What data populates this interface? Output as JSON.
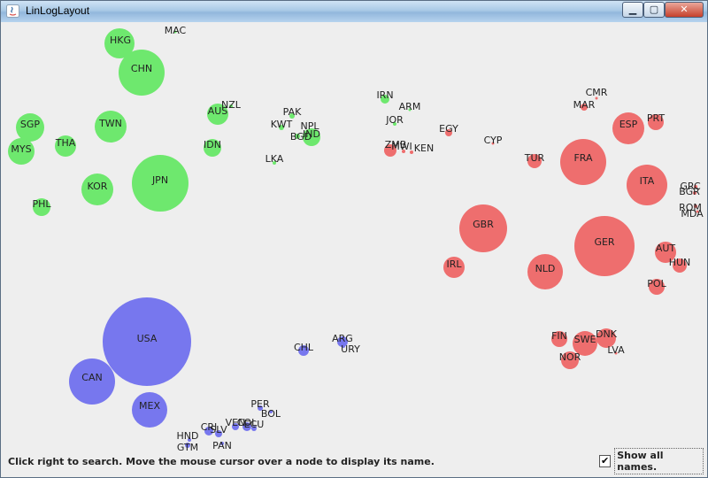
{
  "window": {
    "title": "LinLogLayout"
  },
  "window_buttons": {
    "minimize": "▁",
    "maximize": "▢",
    "close": "✕"
  },
  "colors": {
    "asia": "#6ee86e",
    "europe": "#ee6e6e",
    "americas": "#7777ee"
  },
  "nodes": [
    {
      "name": "HKG",
      "group": "asia"
    },
    {
      "name": "MAC",
      "group": "asia"
    },
    {
      "name": "CHN",
      "group": "asia"
    },
    {
      "name": "SGP",
      "group": "asia"
    },
    {
      "name": "TWN",
      "group": "asia"
    },
    {
      "name": "MYS",
      "group": "asia"
    },
    {
      "name": "THA",
      "group": "asia"
    },
    {
      "name": "AUS",
      "group": "asia"
    },
    {
      "name": "NZL",
      "group": "asia"
    },
    {
      "name": "IDN",
      "group": "asia"
    },
    {
      "name": "PAK",
      "group": "asia"
    },
    {
      "name": "KWT",
      "group": "asia"
    },
    {
      "name": "NPL",
      "group": "asia"
    },
    {
      "name": "BGD",
      "group": "asia"
    },
    {
      "name": "IND",
      "group": "asia"
    },
    {
      "name": "LKA",
      "group": "asia"
    },
    {
      "name": "JPN",
      "group": "asia"
    },
    {
      "name": "KOR",
      "group": "asia"
    },
    {
      "name": "PHL",
      "group": "asia"
    },
    {
      "name": "IRN",
      "group": "asia"
    },
    {
      "name": "ARM",
      "group": "asia"
    },
    {
      "name": "JOR",
      "group": "asia"
    },
    {
      "name": "CMR",
      "group": "europe"
    },
    {
      "name": "MAR",
      "group": "europe"
    },
    {
      "name": "ESP",
      "group": "europe"
    },
    {
      "name": "PRT",
      "group": "europe"
    },
    {
      "name": "EGY",
      "group": "europe"
    },
    {
      "name": "CYP",
      "group": "europe"
    },
    {
      "name": "ZMB",
      "group": "europe"
    },
    {
      "name": "MWI",
      "group": "europe"
    },
    {
      "name": "KEN",
      "group": "europe"
    },
    {
      "name": "TUR",
      "group": "europe"
    },
    {
      "name": "FRA",
      "group": "europe"
    },
    {
      "name": "ITA",
      "group": "europe"
    },
    {
      "name": "GRC",
      "group": "europe"
    },
    {
      "name": "BGR",
      "group": "europe"
    },
    {
      "name": "ROM",
      "group": "europe"
    },
    {
      "name": "MDA",
      "group": "europe"
    },
    {
      "name": "GBR",
      "group": "europe"
    },
    {
      "name": "GER",
      "group": "europe"
    },
    {
      "name": "IRL",
      "group": "europe"
    },
    {
      "name": "AUT",
      "group": "europe"
    },
    {
      "name": "HUN",
      "group": "europe"
    },
    {
      "name": "NLD",
      "group": "europe"
    },
    {
      "name": "POL",
      "group": "europe"
    },
    {
      "name": "FIN",
      "group": "europe"
    },
    {
      "name": "SWE",
      "group": "europe"
    },
    {
      "name": "DNK",
      "group": "europe"
    },
    {
      "name": "NOR",
      "group": "europe"
    },
    {
      "name": "LVA",
      "group": "europe"
    },
    {
      "name": "USA",
      "group": "americas"
    },
    {
      "name": "CAN",
      "group": "americas"
    },
    {
      "name": "MEX",
      "group": "americas"
    },
    {
      "name": "CHL",
      "group": "americas"
    },
    {
      "name": "ARG",
      "group": "americas"
    },
    {
      "name": "URY",
      "group": "americas"
    },
    {
      "name": "PER",
      "group": "americas"
    },
    {
      "name": "BOL",
      "group": "americas"
    },
    {
      "name": "VEN",
      "group": "americas"
    },
    {
      "name": "COL",
      "group": "americas"
    },
    {
      "name": "ECU",
      "group": "americas"
    },
    {
      "name": "CRI",
      "group": "americas"
    },
    {
      "name": "SLV",
      "group": "americas"
    },
    {
      "name": "HND",
      "group": "americas"
    },
    {
      "name": "GTM",
      "group": "americas"
    },
    {
      "name": "PAN",
      "group": "americas"
    }
  ],
  "status": {
    "text": "Click right to search. Move the mouse cursor over a node to display its name."
  },
  "show_names": {
    "label": "Show all names.",
    "checked": true,
    "check_glyph": "✔"
  }
}
